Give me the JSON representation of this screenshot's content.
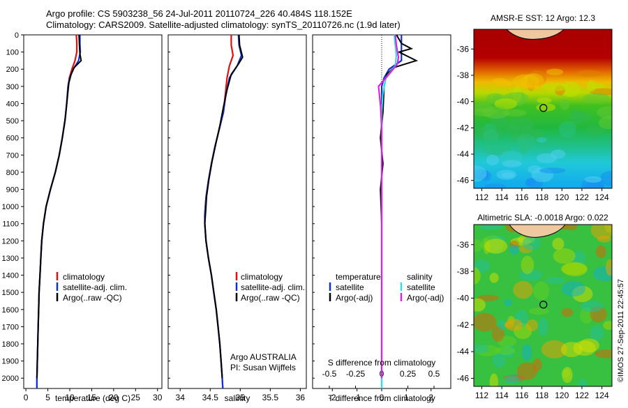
{
  "header": {
    "line1": "Argo profile: CS 5903238_56 24-Jul-2011 20110724_226 40.484S 118.152E",
    "line2": "Climatology: CARS2009. Satellite-adjusted climatology: synTS_20110726.nc (1.9d later)"
  },
  "colors": {
    "climatology": "#e01010",
    "satellite": "#1030d0",
    "argo": "#000000",
    "sal_satellite": "#30e0e0",
    "sal_argo": "#e020e0"
  },
  "credit": "©IMOS 27-Sep-2011 22:45:57",
  "argo_credit": {
    "line1": "Argo AUSTRALIA",
    "line2": "PI: Susan Wijffels"
  },
  "chart_data": [
    {
      "id": "temperature",
      "type": "line",
      "xlabel": "temperature (deg C)",
      "xlim": [
        -0.5,
        31
      ],
      "xticks": [
        0,
        5,
        10,
        15,
        20,
        25,
        30
      ],
      "ylim": [
        0,
        2060
      ],
      "yticks": [
        0,
        100,
        200,
        300,
        400,
        500,
        600,
        700,
        800,
        900,
        1000,
        1100,
        1200,
        1300,
        1400,
        1500,
        1600,
        1700,
        1800,
        1900,
        2000
      ],
      "legend": [
        "climatology",
        "satellite-adj. clim.",
        "Argo(..raw -QC)"
      ],
      "series": [
        {
          "name": "climatology",
          "color": "#e01010",
          "points": [
            [
              11.5,
              0
            ],
            [
              11.6,
              50
            ],
            [
              11.6,
              100
            ],
            [
              11.2,
              150
            ],
            [
              10.5,
              200
            ],
            [
              9.9,
              250
            ],
            [
              9.6,
              300
            ],
            [
              9.3,
              400
            ],
            [
              8.9,
              500
            ],
            [
              8.3,
              600
            ],
            [
              7.6,
              700
            ],
            [
              6.7,
              800
            ],
            [
              5.6,
              900
            ],
            [
              4.6,
              1000
            ],
            [
              4.0,
              1100
            ],
            [
              3.6,
              1200
            ],
            [
              3.4,
              1300
            ],
            [
              3.2,
              1400
            ],
            [
              3.0,
              1500
            ],
            [
              2.9,
              1600
            ],
            [
              2.8,
              1700
            ],
            [
              2.7,
              1800
            ],
            [
              2.6,
              1900
            ],
            [
              2.5,
              2000
            ],
            [
              2.5,
              2060
            ]
          ]
        },
        {
          "name": "satellite",
          "color": "#1030d0",
          "points": [
            [
              12.3,
              0
            ],
            [
              12.3,
              50
            ],
            [
              12.4,
              100
            ],
            [
              12.0,
              150
            ],
            [
              10.8,
              200
            ],
            [
              10.0,
              250
            ],
            [
              9.6,
              300
            ],
            [
              9.3,
              400
            ],
            [
              8.9,
              500
            ],
            [
              8.3,
              600
            ],
            [
              7.6,
              700
            ],
            [
              6.7,
              800
            ],
            [
              5.6,
              900
            ],
            [
              4.6,
              1000
            ],
            [
              4.0,
              1100
            ],
            [
              3.6,
              1200
            ],
            [
              3.4,
              1300
            ],
            [
              3.2,
              1400
            ],
            [
              3.0,
              1500
            ],
            [
              2.9,
              1600
            ],
            [
              2.8,
              1700
            ],
            [
              2.7,
              1800
            ],
            [
              2.6,
              1900
            ],
            [
              2.5,
              2000
            ],
            [
              2.5,
              2060
            ]
          ]
        },
        {
          "name": "argo",
          "color": "#000000",
          "points": [
            [
              12.1,
              0
            ],
            [
              12.2,
              60
            ],
            [
              12.3,
              110
            ],
            [
              12.6,
              150
            ],
            [
              11.0,
              190
            ],
            [
              10.3,
              230
            ],
            [
              9.8,
              280
            ],
            [
              9.4,
              380
            ],
            [
              9.0,
              480
            ],
            [
              8.3,
              600
            ],
            [
              7.6,
              700
            ],
            [
              6.7,
              800
            ],
            [
              5.6,
              900
            ],
            [
              4.6,
              1000
            ],
            [
              4.0,
              1100
            ],
            [
              3.6,
              1200
            ],
            [
              3.4,
              1300
            ],
            [
              3.2,
              1400
            ],
            [
              3.0,
              1500
            ],
            [
              2.9,
              1600
            ],
            [
              2.8,
              1700
            ],
            [
              2.7,
              1800
            ],
            [
              2.6,
              1900
            ],
            [
              2.5,
              2000
            ]
          ]
        }
      ]
    },
    {
      "id": "salinity",
      "type": "line",
      "xlabel": "salinity",
      "xlim": [
        33.8,
        36.1
      ],
      "xticks": [
        34,
        34.5,
        35,
        35.5,
        36
      ],
      "ylim": [
        0,
        2060
      ],
      "legend": [
        "climatology",
        "satellite-adj. clim.",
        "Argo(..raw -QC)"
      ],
      "series": [
        {
          "name": "climatology",
          "color": "#e01010",
          "points": [
            [
              34.85,
              0
            ],
            [
              34.85,
              60
            ],
            [
              34.88,
              120
            ],
            [
              34.82,
              180
            ],
            [
              34.78,
              250
            ],
            [
              34.75,
              350
            ],
            [
              34.72,
              450
            ],
            [
              34.65,
              550
            ],
            [
              34.58,
              650
            ],
            [
              34.52,
              750
            ],
            [
              34.47,
              850
            ],
            [
              34.43,
              950
            ],
            [
              34.41,
              1050
            ],
            [
              34.41,
              1100
            ],
            [
              34.43,
              1200
            ],
            [
              34.47,
              1300
            ],
            [
              34.52,
              1400
            ],
            [
              34.56,
              1500
            ],
            [
              34.6,
              1600
            ],
            [
              34.63,
              1700
            ],
            [
              34.66,
              1800
            ],
            [
              34.68,
              1900
            ],
            [
              34.7,
              2000
            ],
            [
              34.71,
              2060
            ]
          ]
        },
        {
          "name": "satellite",
          "color": "#1030d0",
          "points": [
            [
              34.97,
              0
            ],
            [
              34.98,
              60
            ],
            [
              35.02,
              120
            ],
            [
              34.95,
              180
            ],
            [
              34.82,
              250
            ],
            [
              34.76,
              350
            ],
            [
              34.72,
              450
            ],
            [
              34.65,
              550
            ],
            [
              34.58,
              650
            ],
            [
              34.52,
              750
            ],
            [
              34.47,
              850
            ],
            [
              34.43,
              950
            ],
            [
              34.41,
              1050
            ],
            [
              34.41,
              1100
            ],
            [
              34.43,
              1200
            ],
            [
              34.47,
              1300
            ],
            [
              34.52,
              1400
            ],
            [
              34.56,
              1500
            ],
            [
              34.6,
              1600
            ],
            [
              34.63,
              1700
            ],
            [
              34.66,
              1800
            ],
            [
              34.68,
              1900
            ],
            [
              34.7,
              2000
            ],
            [
              34.71,
              2060
            ]
          ]
        },
        {
          "name": "argo",
          "color": "#000000",
          "points": [
            [
              34.98,
              0
            ],
            [
              34.99,
              60
            ],
            [
              35.04,
              130
            ],
            [
              34.97,
              170
            ],
            [
              34.85,
              230
            ],
            [
              34.78,
              320
            ],
            [
              34.72,
              420
            ],
            [
              34.66,
              530
            ],
            [
              34.59,
              640
            ],
            [
              34.53,
              740
            ],
            [
              34.48,
              840
            ],
            [
              34.44,
              940
            ],
            [
              34.42,
              1050
            ],
            [
              34.41,
              1100
            ],
            [
              34.43,
              1200
            ],
            [
              34.47,
              1300
            ],
            [
              34.52,
              1400
            ],
            [
              34.56,
              1500
            ],
            [
              34.6,
              1600
            ],
            [
              34.63,
              1700
            ],
            [
              34.66,
              1800
            ],
            [
              34.68,
              1900
            ],
            [
              34.7,
              2000
            ]
          ]
        }
      ]
    },
    {
      "id": "difference",
      "type": "line",
      "xlabel": "T difference from climatology",
      "xlabel_top": "S difference from climatology",
      "xlim": [
        -2.8,
        2.8
      ],
      "xticks": [
        -2,
        -1,
        0,
        1,
        2
      ],
      "xticks_top": [
        -0.5,
        -0.25,
        0,
        0.25,
        0.5
      ],
      "xticks_top_labels": [
        "-0.5",
        "-0.25",
        "0",
        "0.25",
        "0.5"
      ],
      "ylim": [
        0,
        2060
      ],
      "legend_left_title": "temperature",
      "legend_right_title": "salinity",
      "legend": [
        "satellite",
        "Argo(-adj)",
        "satellite",
        "Argo(-adj)"
      ],
      "series": [
        {
          "name": "temperature satellite",
          "color": "#1030d0",
          "points": [
            [
              0.8,
              0
            ],
            [
              0.8,
              50
            ],
            [
              0.8,
              100
            ],
            [
              0.8,
              150
            ],
            [
              0.3,
              200
            ],
            [
              0.1,
              250
            ],
            [
              0,
              300
            ],
            [
              0,
              2060
            ]
          ]
        },
        {
          "name": "temperature argo",
          "color": "#000000",
          "points": [
            [
              0.6,
              0
            ],
            [
              0.8,
              50
            ],
            [
              1.2,
              80
            ],
            [
              0.7,
              100
            ],
            [
              1.4,
              150
            ],
            [
              0.5,
              190
            ],
            [
              0.2,
              230
            ],
            [
              0.1,
              300
            ],
            [
              0.05,
              450
            ],
            [
              -0.05,
              600
            ],
            [
              0.05,
              750
            ],
            [
              -0.05,
              900
            ],
            [
              0,
              1100
            ],
            [
              0,
              2000
            ]
          ]
        },
        {
          "name": "salinity satellite",
          "color": "#30e0e0",
          "points": [
            [
              0.12,
              0
            ],
            [
              0.13,
              60
            ],
            [
              0.14,
              120
            ],
            [
              0.13,
              180
            ],
            [
              0.04,
              250
            ],
            [
              0.01,
              350
            ],
            [
              0,
              450
            ],
            [
              0,
              2060
            ]
          ]
        },
        {
          "name": "salinity argo",
          "color": "#e020e0",
          "points": [
            [
              0.13,
              0
            ],
            [
              0.14,
              60
            ],
            [
              0.16,
              130
            ],
            [
              0.15,
              170
            ],
            [
              0.07,
              230
            ],
            [
              -0.03,
              300
            ],
            [
              -0.01,
              420
            ],
            [
              0,
              550
            ],
            [
              0,
              2000
            ]
          ]
        }
      ]
    },
    {
      "id": "sst_map",
      "type": "heatmap",
      "title": "AMSR-E SST: 12 Argo: 12.3",
      "xticks": [
        112,
        114,
        116,
        118,
        120,
        122,
        124
      ],
      "yticks": [
        -36,
        -38,
        -40,
        -42,
        -44,
        -46
      ],
      "xlim": [
        111.2,
        125
      ],
      "ylim": [
        -46.6,
        -34.5
      ],
      "argo_position": [
        118.152,
        -40.484
      ]
    },
    {
      "id": "sla_map",
      "type": "heatmap",
      "title": "Altimetric SLA: -0.0018 Argo: 0.022",
      "xticks": [
        112,
        114,
        116,
        118,
        120,
        122,
        124
      ],
      "yticks": [
        -36,
        -38,
        -40,
        -42,
        -44,
        -46
      ],
      "xlim": [
        111.2,
        125
      ],
      "ylim": [
        -46.6,
        -34.5
      ],
      "argo_position": [
        118.152,
        -40.484
      ]
    }
  ]
}
